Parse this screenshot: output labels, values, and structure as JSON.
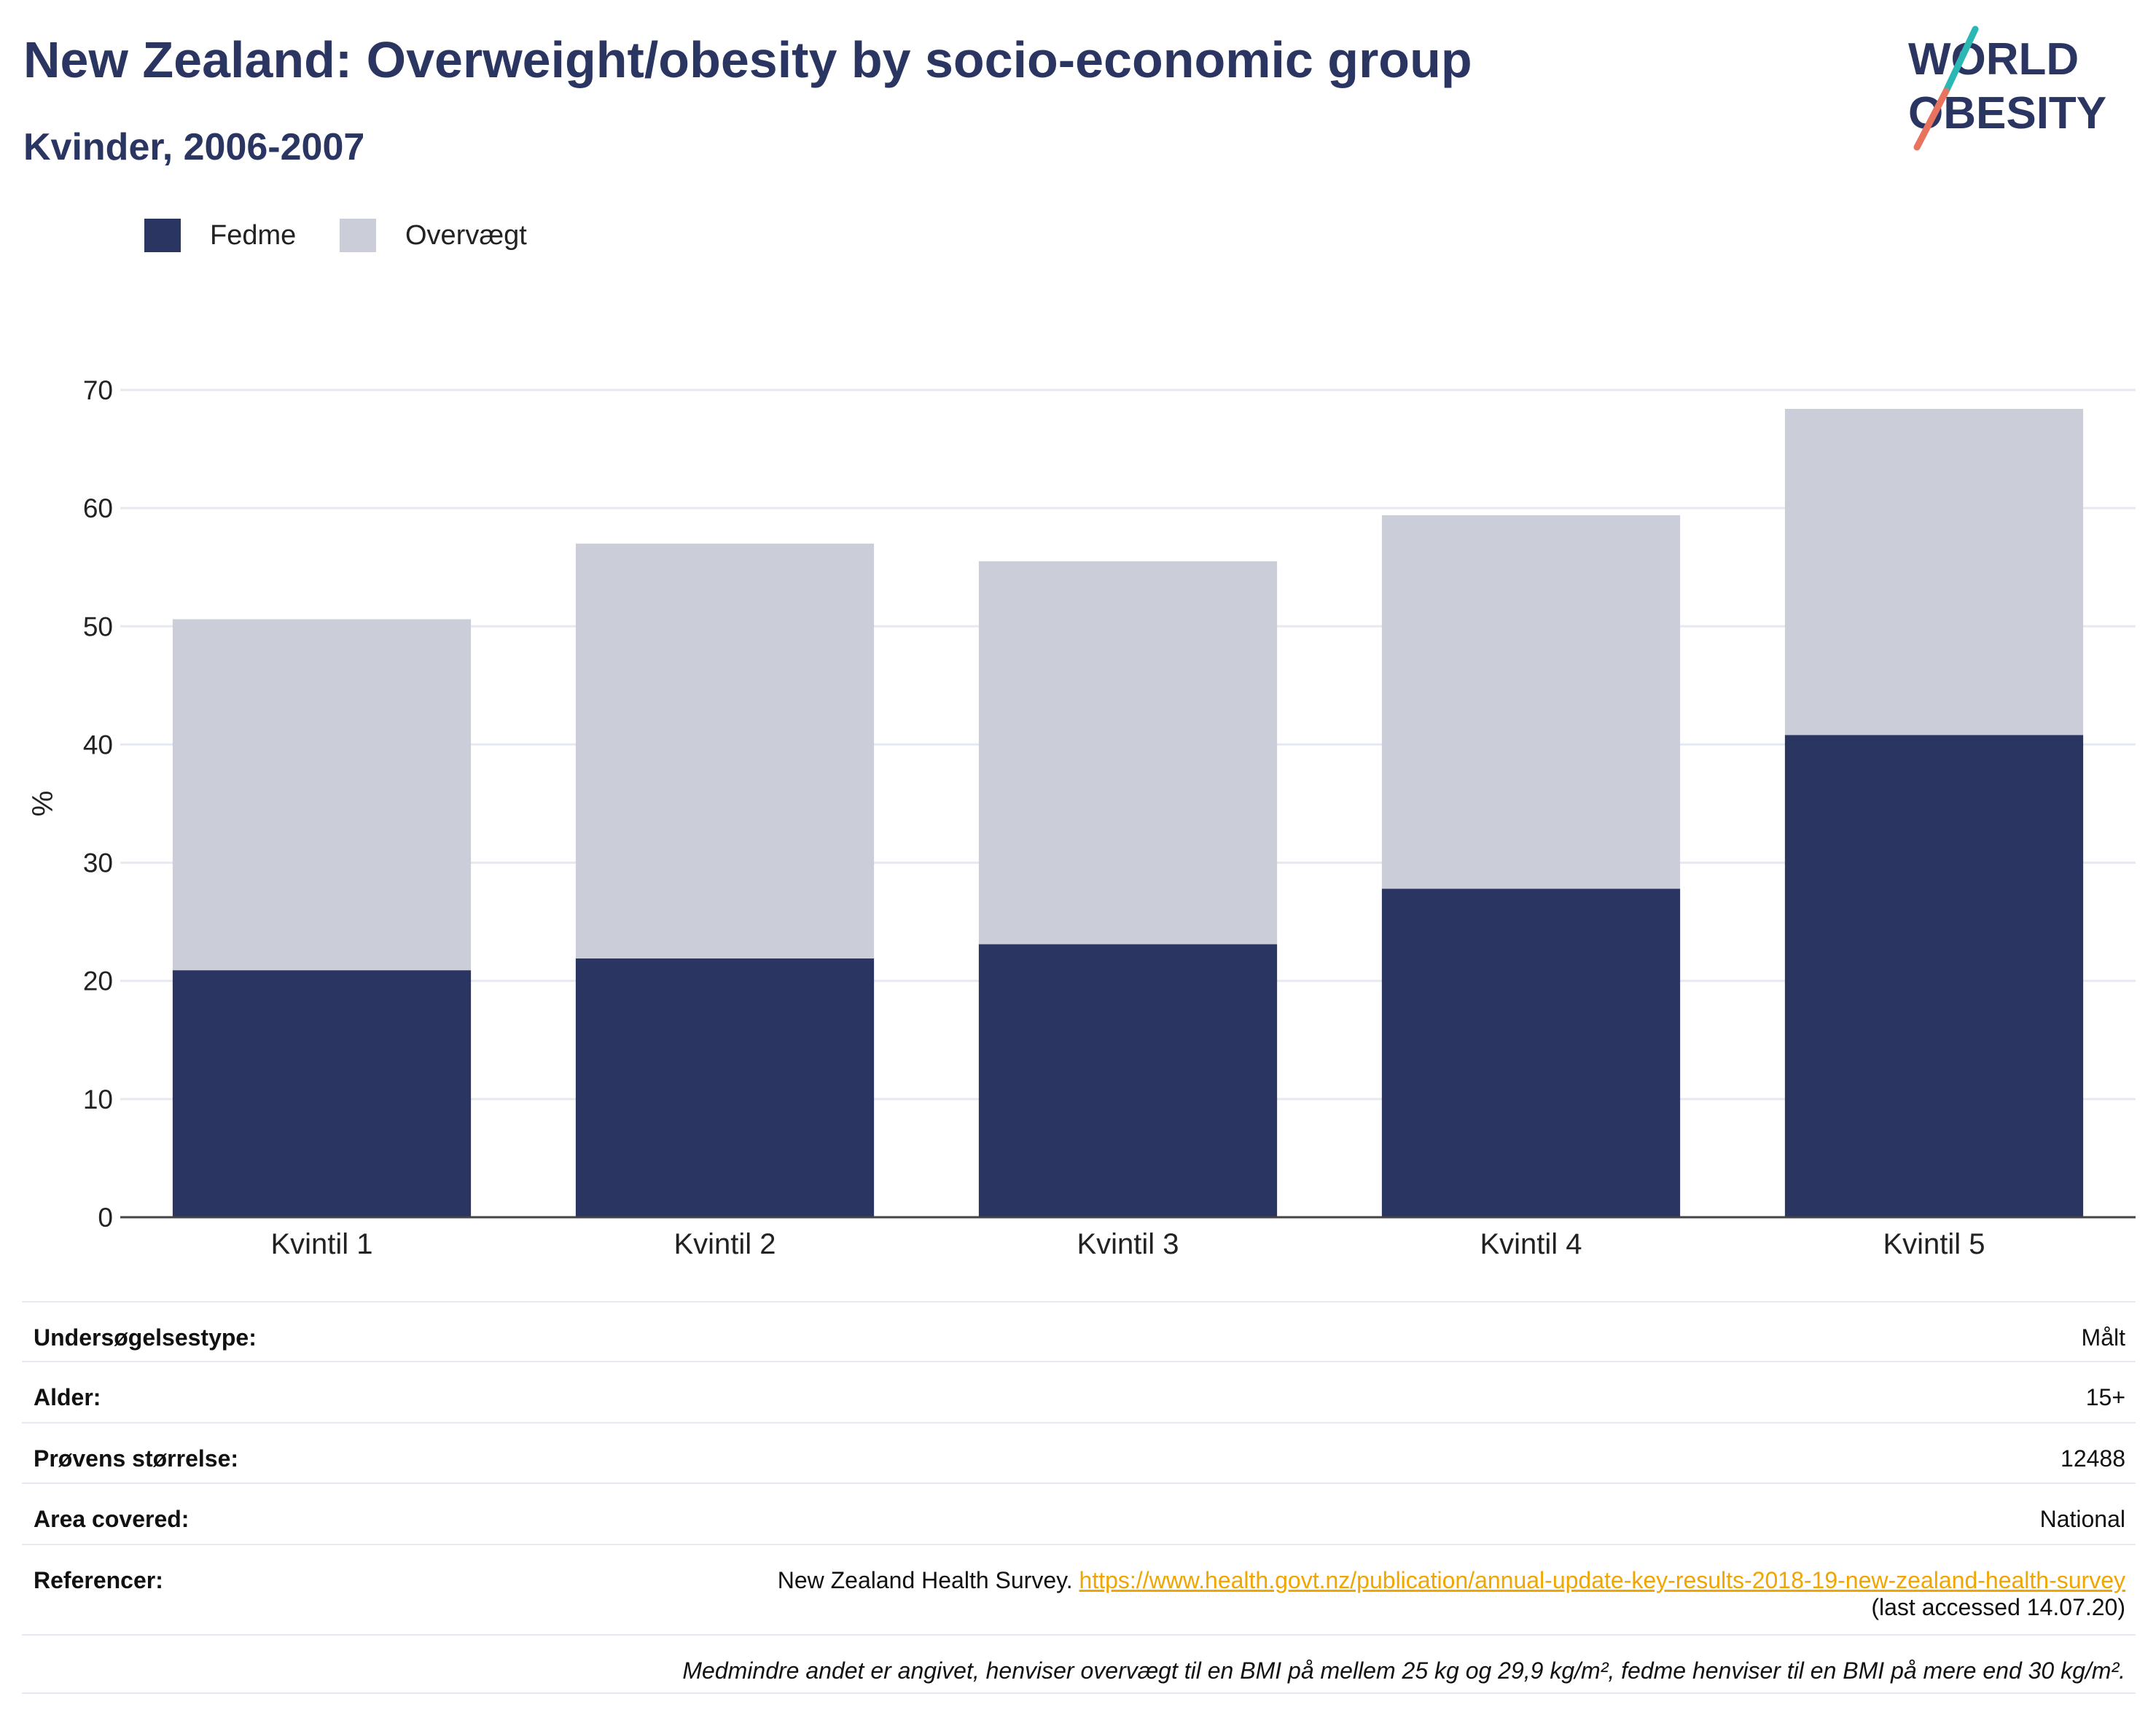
{
  "title": "New Zealand: Overweight/obesity by socio-economic group",
  "subtitle": "Kvinder, 2006-2007",
  "logo": {
    "line1": "WORLD",
    "line2": "OBESITY"
  },
  "colors": {
    "fedme": "#2a3562",
    "overvaegt": "#cbcdd8",
    "title": "#2a3562",
    "link": "#f0a500",
    "grid": "#e6e9f0"
  },
  "legend": {
    "fedme": "Fedme",
    "overvaegt": "Overvægt"
  },
  "chart_data": {
    "type": "bar",
    "stacked": true,
    "categories": [
      "Kvintil 1",
      "Kvintil 2",
      "Kvintil 3",
      "Kvintil 4",
      "Kvintil 5"
    ],
    "series": [
      {
        "name": "Fedme",
        "values": [
          20.9,
          21.9,
          23.1,
          27.8,
          40.8
        ]
      },
      {
        "name": "Overvægt",
        "values": [
          29.7,
          35.1,
          32.4,
          31.6,
          27.6
        ]
      }
    ],
    "ylabel": "%",
    "ylim": [
      0,
      70
    ],
    "yticks": [
      0,
      10,
      20,
      30,
      40,
      50,
      60,
      70
    ],
    "grid": true,
    "legend_position": "top-left"
  },
  "info": {
    "survey_type": {
      "label": "Undersøgelsestype:",
      "value": "Målt"
    },
    "age": {
      "label": "Alder:",
      "value": "15+"
    },
    "sample_size": {
      "label": "Prøvens størrelse:",
      "value": "12488"
    },
    "area": {
      "label": "Area covered:",
      "value": "National"
    },
    "references": {
      "label": "Referencer:",
      "text": "New Zealand Health Survey. ",
      "link": "https://www.health.govt.nz/publication/annual-update-key-results-2018-19-new-zealand-health-survey",
      "accessed": "(last accessed 14.07.20)"
    },
    "note": "Medmindre andet er angivet, henviser overvægt til en BMI på mellem 25 kg og 29,9 kg/m², fedme henviser til en BMI på mere end 30 kg/m²."
  }
}
